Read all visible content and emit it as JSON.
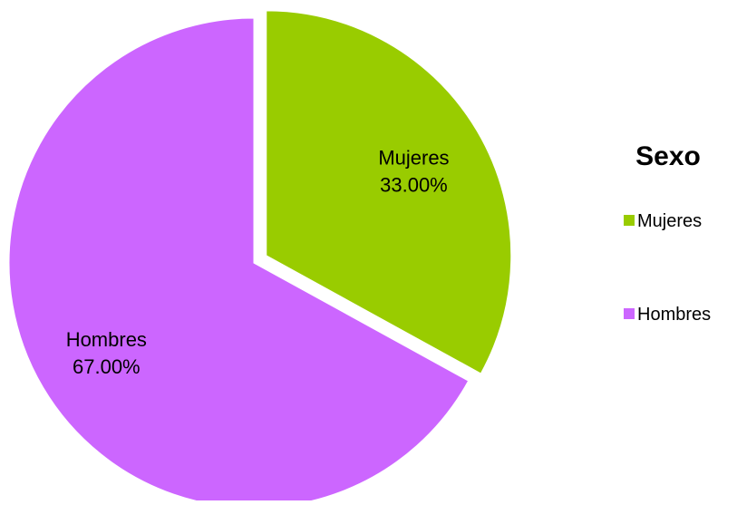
{
  "chart_data": {
    "type": "pie",
    "legend_title": "Sexo",
    "legend_position": "right",
    "categories": [
      "Mujeres",
      "Hombres"
    ],
    "values": [
      33.0,
      67.0
    ],
    "value_labels": [
      "33.00%",
      "67.00%"
    ],
    "colors": [
      "#99CC00",
      "#CC66FF"
    ],
    "exploded": [
      "Mujeres"
    ]
  }
}
